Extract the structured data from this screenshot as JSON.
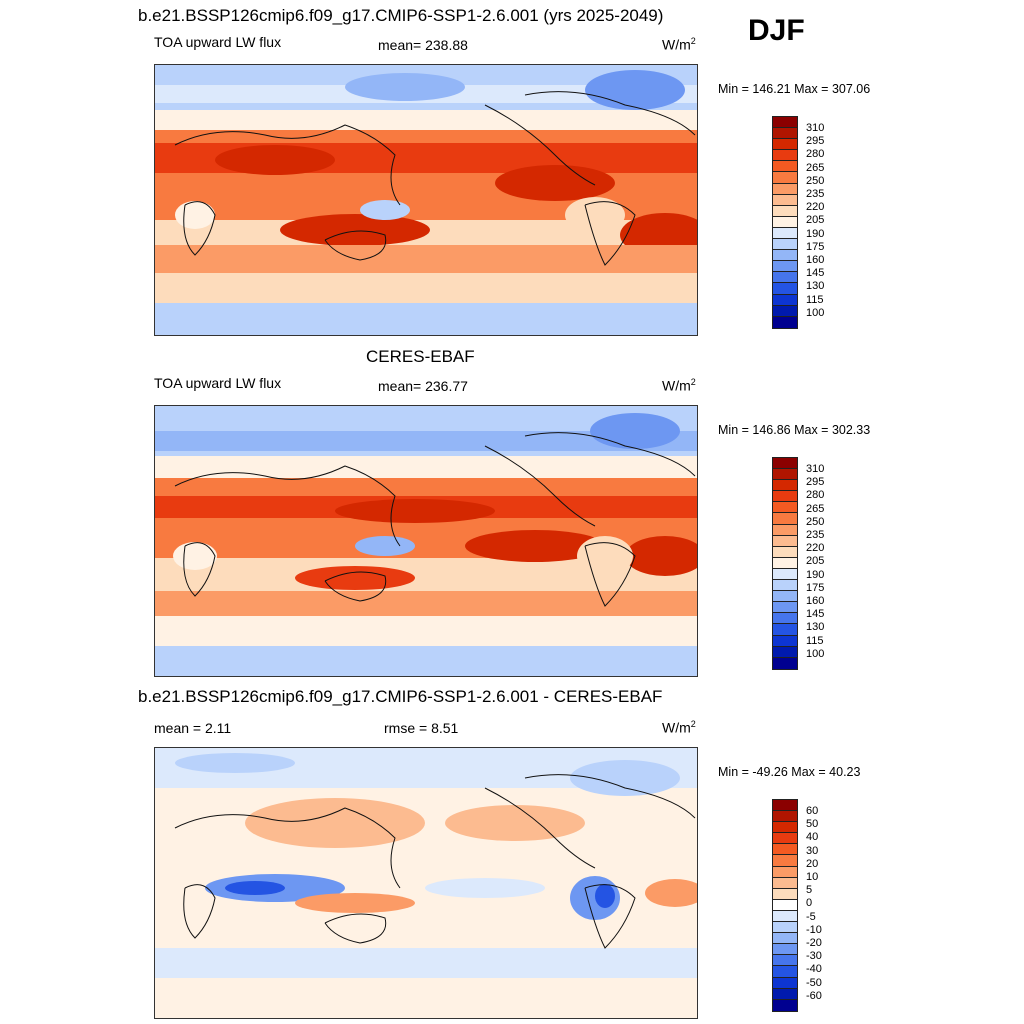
{
  "season": "DJF",
  "panels": [
    {
      "title": "b.e21.BSSP126cmip6.f09_g17.CMIP6-SSP1-2.6.001 (yrs 2025-2049)",
      "left_label": "TOA upward LW flux",
      "center_label": "mean= 238.88",
      "units": "W/m",
      "units_sup": "2",
      "minmax": "Min = 146.21 Max = 307.06",
      "colorbar": {
        "colors": [
          "#8b0000",
          "#b01500",
          "#d42800",
          "#e83b10",
          "#f45a22",
          "#f87a40",
          "#fb9b66",
          "#fcbb90",
          "#fddcbc",
          "#fff2e4",
          "#dce9fc",
          "#b9d2fb",
          "#93b6f7",
          "#6d97f2",
          "#4675ec",
          "#2454e3",
          "#0d35d2",
          "#001aae",
          "#000090"
        ],
        "ticks": [
          "310",
          "295",
          "280",
          "265",
          "250",
          "235",
          "220",
          "205",
          "190",
          "175",
          "160",
          "145",
          "130",
          "115",
          "100"
        ]
      }
    },
    {
      "title": "CERES-EBAF",
      "left_label": "TOA upward LW flux",
      "center_label": "mean= 236.77",
      "units": "W/m",
      "units_sup": "2",
      "minmax": "Min = 146.86 Max = 302.33",
      "colorbar": {
        "colors": [
          "#8b0000",
          "#b01500",
          "#d42800",
          "#e83b10",
          "#f45a22",
          "#f87a40",
          "#fb9b66",
          "#fcbb90",
          "#fddcbc",
          "#fff2e4",
          "#dce9fc",
          "#b9d2fb",
          "#93b6f7",
          "#6d97f2",
          "#4675ec",
          "#2454e3",
          "#0d35d2",
          "#001aae",
          "#000090"
        ],
        "ticks": [
          "310",
          "295",
          "280",
          "265",
          "250",
          "235",
          "220",
          "205",
          "190",
          "175",
          "160",
          "145",
          "130",
          "115",
          "100"
        ]
      }
    },
    {
      "title": "b.e21.BSSP126cmip6.f09_g17.CMIP6-SSP1-2.6.001 - CERES-EBAF",
      "left_label": "mean =   2.11",
      "center_label": "rmse =   8.51",
      "units": "W/m",
      "units_sup": "2",
      "minmax": "Min = -49.26 Max =  40.23",
      "colorbar": {
        "colors": [
          "#8b0000",
          "#b01500",
          "#d42800",
          "#e83b10",
          "#f45a22",
          "#f87a40",
          "#fb9b66",
          "#fcbb90",
          "#fddcbc",
          "#ffffff",
          "#dce9fc",
          "#b9d2fb",
          "#93b6f7",
          "#6d97f2",
          "#4675ec",
          "#2454e3",
          "#0d35d2",
          "#001aae",
          "#000090"
        ],
        "ticks": [
          "60",
          "50",
          "40",
          "30",
          "20",
          "10",
          "5",
          "0",
          "-5",
          "-10",
          "-20",
          "-30",
          "-40",
          "-50",
          "-60"
        ]
      }
    }
  ]
}
